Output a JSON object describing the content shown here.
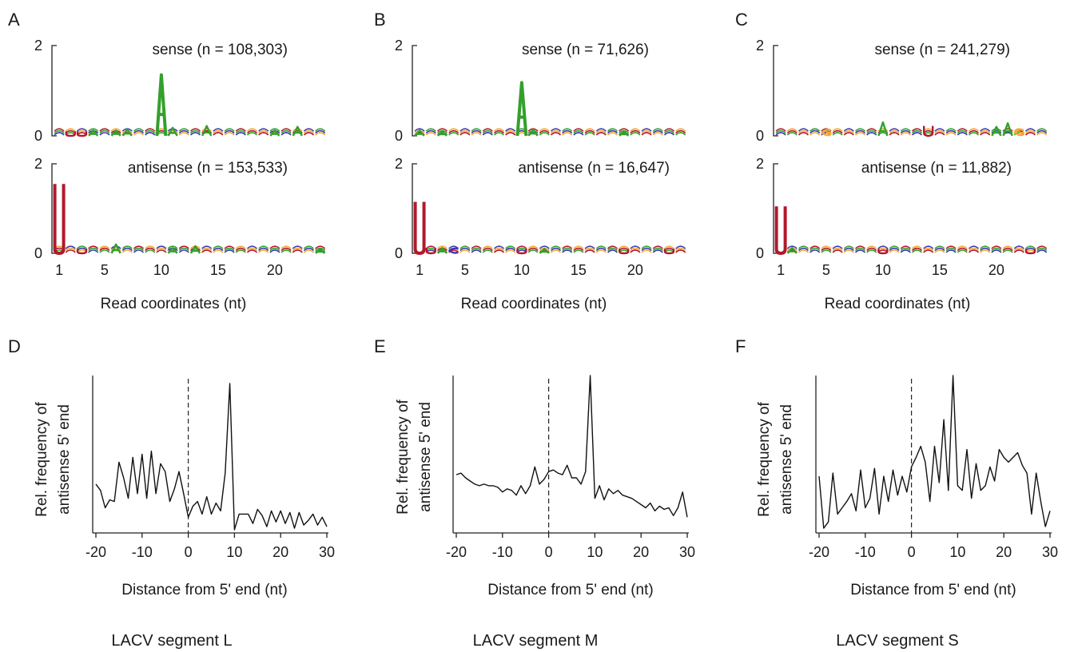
{
  "colors": {
    "A": "#33a02c",
    "C": "#3a3ab0",
    "G": "#f2a93b",
    "U": "#b2182b",
    "line": "#111111"
  },
  "chart_data": [
    {
      "panel": "A",
      "type": "logo",
      "strand": "sense",
      "label": "sense (n = 108,303)",
      "ylim": [
        0,
        2
      ],
      "yticks": [
        "0",
        "2"
      ],
      "peaks": [
        {
          "pos": 10,
          "base": "A",
          "bits": 1.35
        },
        {
          "pos": 11,
          "base": "A",
          "bits": 0.18
        },
        {
          "pos": 14,
          "base": "A",
          "bits": 0.22
        },
        {
          "pos": 22,
          "base": "A",
          "bits": 0.2
        },
        {
          "pos": 20,
          "base": "A",
          "bits": 0.12
        },
        {
          "pos": 2,
          "base": "U",
          "bits": 0.1
        },
        {
          "pos": 3,
          "base": "U",
          "bits": 0.1
        },
        {
          "pos": 4,
          "base": "A",
          "bits": 0.12
        },
        {
          "pos": 6,
          "base": "A",
          "bits": 0.12
        },
        {
          "pos": 7,
          "base": "A",
          "bits": 0.14
        }
      ]
    },
    {
      "panel": "A",
      "type": "logo",
      "strand": "antisense",
      "label": "antisense (n = 153,533)",
      "ylim": [
        0,
        2
      ],
      "yticks": [
        "0",
        "2"
      ],
      "peaks": [
        {
          "pos": 1,
          "base": "U",
          "bits": 1.55
        },
        {
          "pos": 3,
          "base": "U",
          "bits": 0.1
        },
        {
          "pos": 6,
          "base": "A",
          "bits": 0.2
        },
        {
          "pos": 11,
          "base": "A",
          "bits": 0.12
        },
        {
          "pos": 13,
          "base": "A",
          "bits": 0.16
        },
        {
          "pos": 24,
          "base": "A",
          "bits": 0.1
        }
      ],
      "xticks": [
        "1",
        "5",
        "10",
        "15",
        "20"
      ],
      "xlabel": "Read coordinates (nt)"
    },
    {
      "panel": "B",
      "type": "logo",
      "strand": "sense",
      "label": "sense (n = 71,626)",
      "ylim": [
        0,
        2
      ],
      "yticks": [
        "0",
        "2"
      ],
      "peaks": [
        {
          "pos": 10,
          "base": "A",
          "bits": 1.18
        },
        {
          "pos": 11,
          "base": "A",
          "bits": 0.14
        },
        {
          "pos": 1,
          "base": "A",
          "bits": 0.12
        },
        {
          "pos": 3,
          "base": "A",
          "bits": 0.1
        },
        {
          "pos": 19,
          "base": "A",
          "bits": 0.1
        }
      ]
    },
    {
      "panel": "B",
      "type": "logo",
      "strand": "antisense",
      "label": "antisense (n = 16,647)",
      "ylim": [
        0,
        2
      ],
      "yticks": [
        "0",
        "2"
      ],
      "peaks": [
        {
          "pos": 1,
          "base": "U",
          "bits": 1.15
        },
        {
          "pos": 2,
          "base": "U",
          "bits": 0.12
        },
        {
          "pos": 3,
          "base": "A",
          "bits": 0.12
        },
        {
          "pos": 4,
          "base": "C",
          "bits": 0.12
        },
        {
          "pos": 10,
          "base": "U",
          "bits": 0.1
        },
        {
          "pos": 12,
          "base": "A",
          "bits": 0.1
        },
        {
          "pos": 19,
          "base": "U",
          "bits": 0.1
        },
        {
          "pos": 23,
          "base": "U",
          "bits": 0.1
        }
      ],
      "xticks": [
        "1",
        "5",
        "10",
        "15",
        "20"
      ],
      "xlabel": "Read coordinates (nt)"
    },
    {
      "panel": "C",
      "type": "logo",
      "strand": "sense",
      "label": "sense (n = 241,279)",
      "ylim": [
        0,
        2
      ],
      "yticks": [
        "0",
        "2"
      ],
      "peaks": [
        {
          "pos": 10,
          "base": "A",
          "bits": 0.3
        },
        {
          "pos": 14,
          "base": "U",
          "bits": 0.22
        },
        {
          "pos": 5,
          "base": "G",
          "bits": 0.15
        },
        {
          "pos": 20,
          "base": "A",
          "bits": 0.2
        },
        {
          "pos": 21,
          "base": "A",
          "bits": 0.28
        },
        {
          "pos": 22,
          "base": "G",
          "bits": 0.15
        }
      ]
    },
    {
      "panel": "C",
      "type": "logo",
      "strand": "antisense",
      "label": "antisense (n = 11,882)",
      "ylim": [
        0,
        2
      ],
      "yticks": [
        "0",
        "2"
      ],
      "peaks": [
        {
          "pos": 1,
          "base": "U",
          "bits": 1.05
        },
        {
          "pos": 2,
          "base": "A",
          "bits": 0.12
        },
        {
          "pos": 10,
          "base": "U",
          "bits": 0.1
        },
        {
          "pos": 23,
          "base": "U",
          "bits": 0.1
        }
      ],
      "xticks": [
        "1",
        "5",
        "10",
        "15",
        "20"
      ],
      "xlabel": "Read coordinates (nt)"
    },
    {
      "panel": "D",
      "type": "line",
      "title": "LACV segment L",
      "xlabel": "Distance from 5' end (nt)",
      "ylabel": "Rel. frequency of antisense 5' end",
      "xlim": [
        -20,
        30
      ],
      "ylim": [
        0,
        1
      ],
      "xticks": [
        "-20",
        "-10",
        "0",
        "10",
        "20",
        "30"
      ],
      "x": [
        -20,
        -19,
        -18,
        -17,
        -16,
        -15,
        -14,
        -13,
        -12,
        -11,
        -10,
        -9,
        -8,
        -7,
        -6,
        -5,
        -4,
        -3,
        -2,
        -1,
        0,
        1,
        2,
        3,
        4,
        5,
        6,
        7,
        8,
        9,
        10,
        11,
        12,
        13,
        14,
        15,
        16,
        17,
        18,
        19,
        20,
        21,
        22,
        23,
        24,
        25,
        26,
        27,
        28,
        29,
        30
      ],
      "y": [
        0.31,
        0.27,
        0.16,
        0.21,
        0.2,
        0.45,
        0.35,
        0.22,
        0.48,
        0.25,
        0.5,
        0.22,
        0.52,
        0.25,
        0.44,
        0.39,
        0.2,
        0.28,
        0.39,
        0.25,
        0.1,
        0.17,
        0.2,
        0.12,
        0.23,
        0.12,
        0.19,
        0.14,
        0.38,
        0.95,
        0.02,
        0.12,
        0.12,
        0.12,
        0.06,
        0.15,
        0.11,
        0.04,
        0.14,
        0.07,
        0.14,
        0.06,
        0.13,
        0.03,
        0.13,
        0.05,
        0.08,
        0.12,
        0.05,
        0.1,
        0.04
      ]
    },
    {
      "panel": "E",
      "type": "line",
      "title": "LACV segment M",
      "xlabel": "Distance from 5' end (nt)",
      "ylabel": "Rel. frequency of antisense 5' end",
      "xlim": [
        -20,
        30
      ],
      "ylim": [
        0,
        1
      ],
      "xticks": [
        "-20",
        "-10",
        "0",
        "10",
        "20",
        "30"
      ],
      "x": [
        -20,
        -19,
        -18,
        -17,
        -16,
        -15,
        -14,
        -13,
        -12,
        -11,
        -10,
        -9,
        -8,
        -7,
        -6,
        -5,
        -4,
        -3,
        -2,
        -1,
        0,
        1,
        2,
        3,
        4,
        5,
        6,
        7,
        8,
        9,
        10,
        11,
        12,
        13,
        14,
        15,
        16,
        17,
        18,
        19,
        20,
        21,
        22,
        23,
        24,
        25,
        26,
        27,
        28,
        29,
        30
      ],
      "y": [
        0.37,
        0.38,
        0.35,
        0.33,
        0.31,
        0.3,
        0.31,
        0.3,
        0.3,
        0.29,
        0.26,
        0.28,
        0.27,
        0.24,
        0.3,
        0.25,
        0.3,
        0.42,
        0.31,
        0.34,
        0.39,
        0.4,
        0.38,
        0.37,
        0.43,
        0.35,
        0.35,
        0.31,
        0.39,
        1.0,
        0.22,
        0.3,
        0.21,
        0.28,
        0.25,
        0.27,
        0.24,
        0.23,
        0.22,
        0.2,
        0.18,
        0.16,
        0.19,
        0.14,
        0.17,
        0.15,
        0.16,
        0.11,
        0.16,
        0.26,
        0.1
      ]
    },
    {
      "panel": "F",
      "type": "line",
      "title": "LACV segment S",
      "xlabel": "Distance from 5' end (nt)",
      "ylabel": "Rel. frequency of antisense 5' end",
      "xlim": [
        -20,
        30
      ],
      "ylim": [
        0,
        1
      ],
      "xticks": [
        "-20",
        "-10",
        "0",
        "10",
        "20",
        "30"
      ],
      "x": [
        -20,
        -19,
        -18,
        -17,
        -16,
        -15,
        -14,
        -13,
        -12,
        -11,
        -10,
        -9,
        -8,
        -7,
        -6,
        -5,
        -4,
        -3,
        -2,
        -1,
        0,
        1,
        2,
        3,
        4,
        5,
        6,
        7,
        8,
        9,
        10,
        11,
        12,
        13,
        14,
        15,
        16,
        17,
        18,
        19,
        20,
        21,
        22,
        23,
        24,
        25,
        26,
        27,
        28,
        29,
        30
      ],
      "y": [
        0.36,
        0.03,
        0.07,
        0.38,
        0.12,
        0.16,
        0.2,
        0.25,
        0.14,
        0.4,
        0.16,
        0.22,
        0.41,
        0.12,
        0.36,
        0.2,
        0.4,
        0.24,
        0.36,
        0.26,
        0.42,
        0.48,
        0.55,
        0.45,
        0.2,
        0.55,
        0.32,
        0.72,
        0.27,
        1.0,
        0.3,
        0.27,
        0.53,
        0.22,
        0.44,
        0.27,
        0.3,
        0.42,
        0.33,
        0.53,
        0.48,
        0.45,
        0.48,
        0.51,
        0.43,
        0.38,
        0.12,
        0.38,
        0.2,
        0.04,
        0.14
      ]
    }
  ]
}
